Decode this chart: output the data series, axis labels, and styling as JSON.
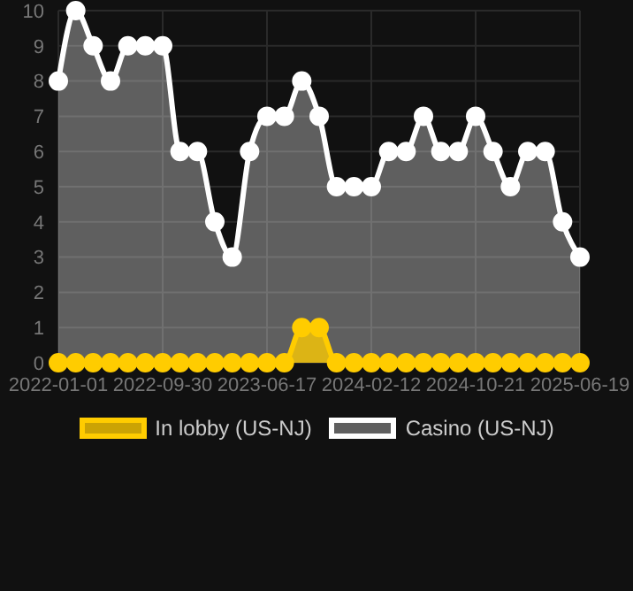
{
  "chart_data": {
    "type": "area",
    "categories": [
      "2022-01-01",
      null,
      null,
      null,
      null,
      null,
      "2022-09-30",
      null,
      null,
      null,
      null,
      null,
      "2023-06-17",
      null,
      null,
      null,
      null,
      null,
      "2024-02-12",
      null,
      null,
      null,
      null,
      null,
      "2024-10-21",
      null,
      null,
      null,
      null,
      null,
      "2025-06-19"
    ],
    "series": [
      {
        "name": "In lobby (US-NJ)",
        "color": "#ffcc00",
        "values": [
          0,
          0,
          0,
          0,
          0,
          0,
          0,
          0,
          0,
          0,
          0,
          0,
          0,
          0,
          1,
          1,
          0,
          0,
          0,
          0,
          0,
          0,
          0,
          0,
          0,
          0,
          0,
          0,
          0,
          0,
          0
        ]
      },
      {
        "name": "Casino (US-NJ)",
        "color": "#ffffff",
        "values": [
          8,
          10,
          9,
          8,
          9,
          9,
          9,
          6,
          6,
          4,
          3,
          6,
          7,
          7,
          8,
          7,
          5,
          5,
          5,
          6,
          6,
          7,
          6,
          6,
          7,
          6,
          5,
          6,
          6,
          4,
          3
        ]
      }
    ],
    "ylim": [
      0,
      10
    ],
    "yticks": [
      0,
      1,
      2,
      3,
      4,
      5,
      6,
      7,
      8,
      9,
      10
    ],
    "grid": true,
    "legend": "bottom",
    "marker": "circle"
  }
}
